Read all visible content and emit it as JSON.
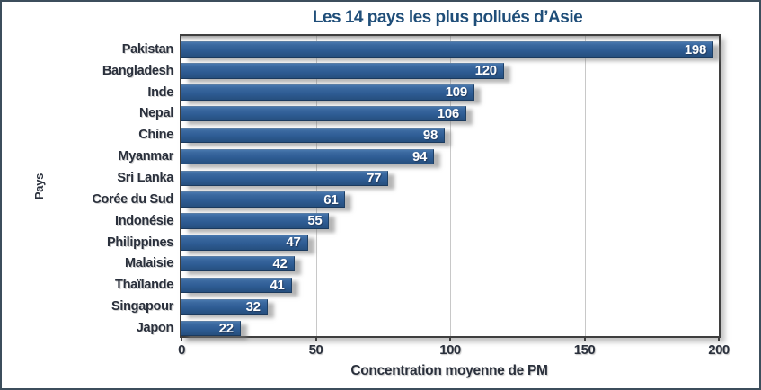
{
  "chart_data": {
    "type": "bar",
    "orientation": "horizontal",
    "title": "Les 14 pays les plus pollués d’Asie",
    "categories": [
      "Pakistan",
      "Bangladesh",
      "Inde",
      "Nepal",
      "Chine",
      "Myanmar",
      "Sri Lanka",
      "Corée du Sud",
      "Indonésie",
      "Philippines",
      "Malaisie",
      "Thaïlande",
      "Singapour",
      "Japon"
    ],
    "values": [
      198,
      120,
      109,
      106,
      98,
      94,
      77,
      61,
      55,
      47,
      42,
      41,
      32,
      22
    ],
    "xlabel": "Concentration moyenne de PM",
    "ylabel": "Pays",
    "xlim": [
      0,
      200
    ],
    "xticks": [
      0,
      50,
      100,
      150,
      200
    ],
    "grid": true,
    "legend": false,
    "bar_value_labels_visible": true,
    "colors": {
      "bar": "#2E5C94",
      "title": "#1F4E79",
      "axis_text": "#2A303C",
      "value_text": "#FFFFFF",
      "gridline": "#C8C8C8",
      "plot_border": "#3F3F3F",
      "outer_border": "#3C4E5C"
    }
  }
}
